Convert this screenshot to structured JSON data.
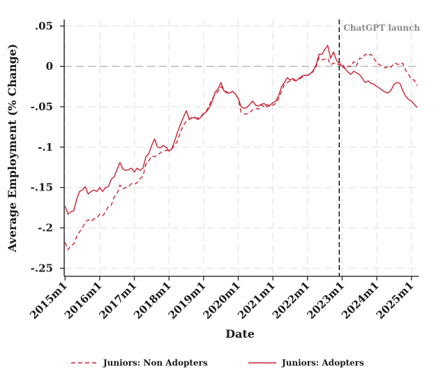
{
  "chart_data": {
    "type": "line",
    "title": "",
    "xlabel": "Date",
    "ylabel": "Average Employment (% Change)",
    "ylim": [
      -0.26,
      0.058
    ],
    "xlim": [
      -0.3,
      122.5
    ],
    "grid": true,
    "legend_position": "bottom",
    "yticks": [
      0.05,
      0,
      -0.05,
      -0.1,
      -0.15,
      -0.2,
      -0.25
    ],
    "ytick_labels": [
      ".05",
      "0",
      "-.05",
      "-.1",
      "-.15",
      "-.2",
      "-.25"
    ],
    "xticks": [
      0,
      12,
      24,
      36,
      48,
      60,
      72,
      84,
      96,
      108,
      120
    ],
    "xtick_labels": [
      "2015m1",
      "2016m1",
      "2017m1",
      "2018m1",
      "2019m1",
      "2020m1",
      "2021m1",
      "2022m1",
      "2023m1",
      "2024m1",
      "2025m1"
    ],
    "vline": {
      "x": 95,
      "label": "ChatGPT launch"
    },
    "hline": {
      "y": 0
    },
    "colors": {
      "series": "#c8202f",
      "grid": "#ececec",
      "zero_line": "#b9b9b9",
      "vline": "#111111",
      "annotation": "#8c8c8c"
    },
    "series": [
      {
        "name": "Juniors: Non Adopters",
        "style": "dashed",
        "points": [
          [
            0,
            -0.218
          ],
          [
            1,
            -0.227
          ],
          [
            2,
            -0.222
          ],
          [
            3,
            -0.22
          ],
          [
            4,
            -0.211
          ],
          [
            5,
            -0.205
          ],
          [
            6,
            -0.2
          ],
          [
            7,
            -0.193
          ],
          [
            8,
            -0.19
          ],
          [
            9,
            -0.192
          ],
          [
            10,
            -0.189
          ],
          [
            11,
            -0.188
          ],
          [
            12,
            -0.183
          ],
          [
            13,
            -0.185
          ],
          [
            14,
            -0.181
          ],
          [
            15,
            -0.173
          ],
          [
            16,
            -0.172
          ],
          [
            17,
            -0.162
          ],
          [
            18,
            -0.158
          ],
          [
            19,
            -0.147
          ],
          [
            20,
            -0.152
          ],
          [
            21,
            -0.15
          ],
          [
            22,
            -0.149
          ],
          [
            23,
            -0.145
          ],
          [
            24,
            -0.146
          ],
          [
            25,
            -0.144
          ],
          [
            26,
            -0.139
          ],
          [
            27,
            -0.136
          ],
          [
            28,
            -0.121
          ],
          [
            29,
            -0.117
          ],
          [
            30,
            -0.111
          ],
          [
            31,
            -0.112
          ],
          [
            32,
            -0.11
          ],
          [
            33,
            -0.107
          ],
          [
            34,
            -0.105
          ],
          [
            35,
            -0.104
          ],
          [
            36,
            -0.104
          ],
          [
            37,
            -0.102
          ],
          [
            38,
            -0.098
          ],
          [
            39,
            -0.092
          ],
          [
            40,
            -0.081
          ],
          [
            41,
            -0.073
          ],
          [
            42,
            -0.068
          ],
          [
            43,
            -0.066
          ],
          [
            44,
            -0.063
          ],
          [
            45,
            -0.064
          ],
          [
            46,
            -0.064
          ],
          [
            47,
            -0.062
          ],
          [
            48,
            -0.058
          ],
          [
            49,
            -0.055
          ],
          [
            50,
            -0.048
          ],
          [
            51,
            -0.04
          ],
          [
            52,
            -0.035
          ],
          [
            53,
            -0.031
          ],
          [
            54,
            -0.025
          ],
          [
            55,
            -0.029
          ],
          [
            56,
            -0.032
          ],
          [
            57,
            -0.033
          ],
          [
            58,
            -0.031
          ],
          [
            59,
            -0.034
          ],
          [
            60,
            -0.04
          ],
          [
            61,
            -0.057
          ],
          [
            62,
            -0.059
          ],
          [
            63,
            -0.059
          ],
          [
            64,
            -0.057
          ],
          [
            65,
            -0.054
          ],
          [
            66,
            -0.052
          ],
          [
            67,
            -0.053
          ],
          [
            68,
            -0.048
          ],
          [
            69,
            -0.05
          ],
          [
            70,
            -0.047
          ],
          [
            71,
            -0.05
          ],
          [
            72,
            -0.048
          ],
          [
            73,
            -0.046
          ],
          [
            74,
            -0.04
          ],
          [
            75,
            -0.031
          ],
          [
            76,
            -0.022
          ],
          [
            77,
            -0.02
          ],
          [
            78,
            -0.018
          ],
          [
            79,
            -0.017
          ],
          [
            80,
            -0.018
          ],
          [
            81,
            -0.016
          ],
          [
            82,
            -0.014
          ],
          [
            83,
            -0.012
          ],
          [
            84,
            -0.011
          ],
          [
            85,
            -0.01
          ],
          [
            86,
            -0.006
          ],
          [
            87,
            0.0
          ],
          [
            88,
            0.011
          ],
          [
            89,
            0.008
          ],
          [
            90,
            0.009
          ],
          [
            91,
            0.01
          ],
          [
            92,
            0.002
          ],
          [
            93,
            0.004
          ],
          [
            94,
            0.003
          ],
          [
            95,
            0.002
          ],
          [
            96,
            0.004
          ],
          [
            97,
            -0.003
          ],
          [
            98,
            0.0
          ],
          [
            99,
            0.0
          ],
          [
            100,
            0.006
          ],
          [
            101,
            0.001
          ],
          [
            102,
            0.01
          ],
          [
            103,
            0.01
          ],
          [
            104,
            0.015
          ],
          [
            105,
            0.013
          ],
          [
            106,
            0.015
          ],
          [
            107,
            0.01
          ],
          [
            108,
            0.004
          ],
          [
            109,
            0.002
          ],
          [
            110,
            0.0
          ],
          [
            111,
            -0.002
          ],
          [
            112,
            0.0
          ],
          [
            113,
            -0.001
          ],
          [
            114,
            0.004
          ],
          [
            115,
            0.003
          ],
          [
            116,
            0.002
          ],
          [
            117,
            0.004
          ],
          [
            118,
            -0.005
          ],
          [
            119,
            -0.01
          ],
          [
            120,
            -0.016
          ],
          [
            121,
            -0.017
          ],
          [
            122,
            -0.024
          ]
        ]
      },
      {
        "name": "Juniors: Adopters",
        "style": "solid",
        "points": [
          [
            0,
            -0.173
          ],
          [
            1,
            -0.183
          ],
          [
            2,
            -0.18
          ],
          [
            3,
            -0.179
          ],
          [
            4,
            -0.165
          ],
          [
            5,
            -0.155
          ],
          [
            6,
            -0.153
          ],
          [
            7,
            -0.149
          ],
          [
            8,
            -0.158
          ],
          [
            9,
            -0.155
          ],
          [
            10,
            -0.153
          ],
          [
            11,
            -0.155
          ],
          [
            12,
            -0.15
          ],
          [
            13,
            -0.155
          ],
          [
            14,
            -0.15
          ],
          [
            15,
            -0.149
          ],
          [
            16,
            -0.14
          ],
          [
            17,
            -0.137
          ],
          [
            18,
            -0.128
          ],
          [
            19,
            -0.119
          ],
          [
            20,
            -0.127
          ],
          [
            21,
            -0.129
          ],
          [
            22,
            -0.128
          ],
          [
            23,
            -0.126
          ],
          [
            24,
            -0.131
          ],
          [
            25,
            -0.126
          ],
          [
            26,
            -0.129
          ],
          [
            27,
            -0.126
          ],
          [
            28,
            -0.112
          ],
          [
            29,
            -0.108
          ],
          [
            30,
            -0.098
          ],
          [
            31,
            -0.09
          ],
          [
            32,
            -0.1
          ],
          [
            33,
            -0.101
          ],
          [
            34,
            -0.098
          ],
          [
            35,
            -0.1
          ],
          [
            36,
            -0.105
          ],
          [
            37,
            -0.102
          ],
          [
            38,
            -0.092
          ],
          [
            39,
            -0.081
          ],
          [
            40,
            -0.072
          ],
          [
            41,
            -0.063
          ],
          [
            42,
            -0.055
          ],
          [
            43,
            -0.065
          ],
          [
            44,
            -0.064
          ],
          [
            45,
            -0.063
          ],
          [
            46,
            -0.066
          ],
          [
            47,
            -0.063
          ],
          [
            48,
            -0.059
          ],
          [
            49,
            -0.056
          ],
          [
            50,
            -0.051
          ],
          [
            51,
            -0.043
          ],
          [
            52,
            -0.032
          ],
          [
            53,
            -0.028
          ],
          [
            54,
            -0.02
          ],
          [
            55,
            -0.03
          ],
          [
            56,
            -0.033
          ],
          [
            57,
            -0.033
          ],
          [
            58,
            -0.031
          ],
          [
            59,
            -0.034
          ],
          [
            60,
            -0.04
          ],
          [
            61,
            -0.05
          ],
          [
            62,
            -0.052
          ],
          [
            63,
            -0.051
          ],
          [
            64,
            -0.047
          ],
          [
            65,
            -0.043
          ],
          [
            66,
            -0.048
          ],
          [
            67,
            -0.049
          ],
          [
            68,
            -0.047
          ],
          [
            69,
            -0.046
          ],
          [
            70,
            -0.05
          ],
          [
            71,
            -0.048
          ],
          [
            72,
            -0.045
          ],
          [
            73,
            -0.043
          ],
          [
            74,
            -0.036
          ],
          [
            75,
            -0.025
          ],
          [
            76,
            -0.02
          ],
          [
            77,
            -0.014
          ],
          [
            78,
            -0.017
          ],
          [
            79,
            -0.015
          ],
          [
            80,
            -0.018
          ],
          [
            81,
            -0.015
          ],
          [
            82,
            -0.012
          ],
          [
            83,
            -0.011
          ],
          [
            84,
            -0.011
          ],
          [
            85,
            -0.009
          ],
          [
            86,
            -0.005
          ],
          [
            87,
            0.002
          ],
          [
            88,
            0.015
          ],
          [
            89,
            0.015
          ],
          [
            90,
            0.021
          ],
          [
            91,
            0.026
          ],
          [
            92,
            0.01
          ],
          [
            93,
            0.018
          ],
          [
            94,
            0.008
          ],
          [
            95,
            0.003
          ],
          [
            96,
            0.0
          ],
          [
            97,
            -0.003
          ],
          [
            98,
            -0.007
          ],
          [
            99,
            -0.01
          ],
          [
            100,
            -0.006
          ],
          [
            101,
            -0.008
          ],
          [
            102,
            -0.01
          ],
          [
            103,
            -0.015
          ],
          [
            104,
            -0.02
          ],
          [
            105,
            -0.018
          ],
          [
            106,
            -0.021
          ],
          [
            107,
            -0.022
          ],
          [
            108,
            -0.025
          ],
          [
            109,
            -0.027
          ],
          [
            110,
            -0.03
          ],
          [
            111,
            -0.032
          ],
          [
            112,
            -0.033
          ],
          [
            113,
            -0.029
          ],
          [
            114,
            -0.022
          ],
          [
            115,
            -0.02
          ],
          [
            116,
            -0.021
          ],
          [
            117,
            -0.03
          ],
          [
            118,
            -0.037
          ],
          [
            119,
            -0.041
          ],
          [
            120,
            -0.043
          ],
          [
            121,
            -0.047
          ],
          [
            122,
            -0.051
          ]
        ]
      }
    ]
  }
}
